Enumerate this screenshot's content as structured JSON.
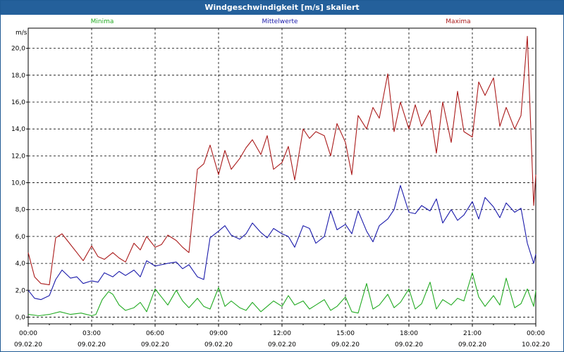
{
  "window": {
    "title": "Windgeschwindigkeit [m/s] skaliert"
  },
  "chart_data": {
    "type": "line",
    "title": "Windgeschwindigkeit [m/s] skaliert",
    "ylabel": "m/s",
    "xlabel": "",
    "ylim": [
      -0.5,
      21.5
    ],
    "xlim_hours": [
      0,
      24
    ],
    "grid": true,
    "legend_placement": "top",
    "y_ticks": [
      "0,0",
      "2,0",
      "4,0",
      "6,0",
      "8,0",
      "10,0",
      "12,0",
      "14,0",
      "16,0",
      "18,0",
      "20,0"
    ],
    "x_ticks": [
      {
        "time": "00:00",
        "date": "09.02.20"
      },
      {
        "time": "03:00",
        "date": "09.02.20"
      },
      {
        "time": "06:00",
        "date": "09.02.20"
      },
      {
        "time": "09:00",
        "date": "09.02.20"
      },
      {
        "time": "12:00",
        "date": "09.02.20"
      },
      {
        "time": "15:00",
        "date": "09.02.20"
      },
      {
        "time": "18:00",
        "date": "09.02.20"
      },
      {
        "time": "21:00",
        "date": "09.02.20"
      },
      {
        "time": "00:00",
        "date": "10.02.20"
      }
    ],
    "series": [
      {
        "name": "Minima",
        "color": "#22aa22",
        "x": [
          0,
          0.5,
          1,
          1.5,
          2,
          2.5,
          3,
          3.2,
          3.5,
          3.8,
          4,
          4.3,
          4.6,
          5,
          5.3,
          5.6,
          6,
          6.3,
          6.6,
          7,
          7.3,
          7.6,
          8,
          8.3,
          8.6,
          9,
          9.3,
          9.6,
          10,
          10.3,
          10.6,
          11,
          11.3,
          11.6,
          12,
          12.3,
          12.6,
          13,
          13.3,
          13.6,
          14,
          14.3,
          14.6,
          15,
          15.3,
          15.6,
          16,
          16.3,
          16.6,
          17,
          17.3,
          17.6,
          18,
          18.3,
          18.6,
          19,
          19.3,
          19.6,
          20,
          20.3,
          20.6,
          21,
          21.3,
          21.6,
          22,
          22.3,
          22.6,
          23,
          23.3,
          23.6,
          23.9,
          24
        ],
        "values": [
          0.2,
          0.1,
          0.2,
          0.4,
          0.2,
          0.3,
          0.1,
          0.2,
          1.3,
          1.9,
          1.7,
          0.9,
          0.5,
          0.7,
          1.1,
          0.4,
          2.1,
          1.5,
          0.9,
          2.0,
          1.2,
          0.7,
          1.4,
          0.8,
          0.6,
          2.2,
          0.8,
          1.2,
          0.7,
          0.5,
          1.1,
          0.4,
          0.8,
          1.2,
          0.8,
          1.6,
          0.9,
          1.2,
          0.6,
          0.9,
          1.3,
          0.5,
          0.8,
          1.5,
          0.4,
          0.3,
          2.5,
          0.6,
          0.9,
          1.7,
          0.7,
          1.1,
          2.1,
          0.6,
          1.0,
          2.6,
          0.6,
          1.3,
          0.9,
          1.4,
          1.2,
          3.3,
          1.5,
          0.8,
          1.6,
          0.9,
          2.9,
          0.7,
          1.0,
          2.1,
          0.8,
          2.0
        ]
      },
      {
        "name": "Mittelwerte",
        "color": "#1a1aaa",
        "x": [
          0,
          0.3,
          0.6,
          1,
          1.3,
          1.6,
          2,
          2.3,
          2.6,
          3,
          3.3,
          3.6,
          4,
          4.3,
          4.6,
          5,
          5.3,
          5.6,
          6,
          6.3,
          6.6,
          7,
          7.3,
          7.6,
          8,
          8.3,
          8.6,
          9,
          9.3,
          9.6,
          10,
          10.3,
          10.6,
          11,
          11.3,
          11.6,
          12,
          12.3,
          12.6,
          13,
          13.3,
          13.6,
          14,
          14.3,
          14.6,
          15,
          15.3,
          15.6,
          16,
          16.3,
          16.6,
          17,
          17.3,
          17.6,
          18,
          18.3,
          18.6,
          19,
          19.3,
          19.6,
          20,
          20.3,
          20.6,
          21,
          21.3,
          21.6,
          22,
          22.3,
          22.6,
          23,
          23.3,
          23.6,
          23.9,
          24
        ],
        "values": [
          2.0,
          1.4,
          1.3,
          1.6,
          2.8,
          3.5,
          2.9,
          3.0,
          2.5,
          2.7,
          2.6,
          3.3,
          3.0,
          3.4,
          3.1,
          3.5,
          3.0,
          4.2,
          3.8,
          3.9,
          4.0,
          4.1,
          3.6,
          3.9,
          3.0,
          2.8,
          5.9,
          6.4,
          6.8,
          6.1,
          5.8,
          6.2,
          7.0,
          6.3,
          5.9,
          6.6,
          6.2,
          6.0,
          5.2,
          6.8,
          6.6,
          5.5,
          6.0,
          7.9,
          6.5,
          6.9,
          6.2,
          7.9,
          6.4,
          5.6,
          6.8,
          7.3,
          8.0,
          9.8,
          7.8,
          7.7,
          8.3,
          7.9,
          8.8,
          7.0,
          8.0,
          7.2,
          7.6,
          8.6,
          7.3,
          8.9,
          8.2,
          7.4,
          8.5,
          7.8,
          8.1,
          5.5,
          4.0,
          4.7
        ]
      },
      {
        "name": "Maxima",
        "color": "#aa1a1a",
        "x": [
          0,
          0.3,
          0.6,
          1,
          1.3,
          1.6,
          2,
          2.3,
          2.6,
          3,
          3.3,
          3.6,
          4,
          4.3,
          4.6,
          5,
          5.3,
          5.6,
          6,
          6.3,
          6.6,
          7,
          7.3,
          7.6,
          8,
          8.3,
          8.6,
          9,
          9.3,
          9.6,
          10,
          10.3,
          10.6,
          11,
          11.3,
          11.6,
          12,
          12.3,
          12.6,
          13,
          13.3,
          13.6,
          14,
          14.3,
          14.6,
          15,
          15.3,
          15.6,
          16,
          16.3,
          16.6,
          17,
          17.3,
          17.6,
          18,
          18.3,
          18.6,
          19,
          19.3,
          19.6,
          20,
          20.3,
          20.6,
          21,
          21.3,
          21.6,
          22,
          22.3,
          22.6,
          23,
          23.3,
          23.6,
          23.9,
          24
        ],
        "values": [
          4.8,
          3.0,
          2.5,
          2.4,
          5.9,
          6.2,
          5.4,
          4.8,
          4.2,
          5.3,
          4.5,
          4.3,
          4.8,
          4.4,
          4.1,
          5.5,
          5.0,
          6.0,
          5.2,
          5.4,
          6.1,
          5.7,
          5.2,
          4.8,
          11.0,
          11.4,
          12.8,
          10.6,
          12.4,
          11.0,
          11.8,
          12.6,
          13.2,
          12.1,
          13.5,
          11.0,
          11.5,
          12.7,
          10.2,
          14.0,
          13.3,
          13.8,
          13.5,
          12.0,
          14.4,
          13.0,
          10.6,
          15.0,
          14.0,
          15.6,
          14.8,
          18.1,
          13.8,
          16.0,
          14.0,
          15.8,
          14.2,
          15.4,
          12.2,
          16.0,
          13.0,
          16.8,
          13.8,
          13.4,
          17.5,
          16.5,
          17.8,
          14.2,
          15.6,
          14.0,
          15.0,
          20.9,
          8.3,
          10.6
        ]
      }
    ]
  }
}
